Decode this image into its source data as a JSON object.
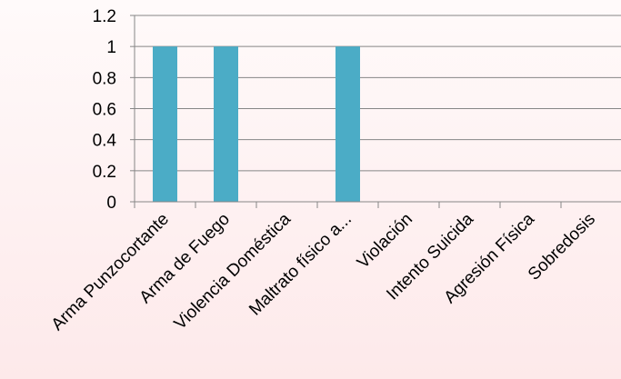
{
  "chart_data": {
    "type": "bar",
    "title": "",
    "xlabel": "",
    "ylabel": "",
    "categories": [
      "Arma Punzocortante",
      "Arma de Fuego",
      "Violencia Doméstica",
      "Maltrato físico a...",
      "Violación",
      "Intento Suicida",
      "Agresión Física",
      "Sobredosis"
    ],
    "values": [
      1,
      1,
      0,
      1,
      0,
      0,
      0,
      0
    ],
    "y_ticks": [
      "0",
      "0.2",
      "0.4",
      "0.6",
      "0.8",
      "1",
      "1.2"
    ],
    "ylim": [
      0,
      1.2
    ],
    "grid": true,
    "legend": "none",
    "bar_color": "#4bacc6",
    "grid_color": "#868686",
    "background_color": "#fdeced"
  }
}
